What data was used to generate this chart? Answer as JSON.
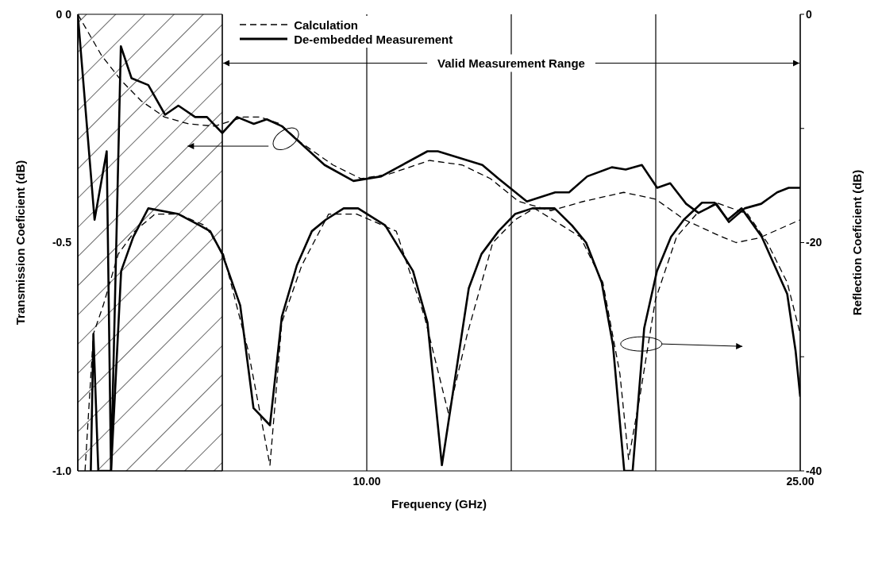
{
  "chart_data": {
    "type": "line",
    "xlabel": "Frequency (GHz)",
    "ylabel": "Transmission Coeficient (dB)",
    "y2label": "Reflection Coeficient (dB)",
    "xlim": [
      0,
      25
    ],
    "xticks": [
      {
        "value": 0,
        "label": null
      },
      {
        "value": 5,
        "label": null
      },
      {
        "value": 10,
        "label": "10.00"
      },
      {
        "value": 15,
        "label": null
      },
      {
        "value": 20,
        "label": null
      },
      {
        "value": 25,
        "label": "25.00"
      }
    ],
    "ylim": [
      -1,
      0
    ],
    "yticks": [
      {
        "value": 0,
        "label": "0 0"
      },
      {
        "value": -0.25,
        "label": null
      },
      {
        "value": -0.5,
        "label": "-0.5"
      },
      {
        "value": -0.75,
        "label": null
      },
      {
        "value": -1,
        "label": "-1.0"
      }
    ],
    "y2lim": [
      -40,
      0
    ],
    "y2ticks": [
      0,
      {
        "value": -10,
        "label": null
      },
      -20,
      {
        "value": -30,
        "label": null
      },
      -40
    ],
    "grid": true,
    "legend": "top left",
    "marker": "none",
    "bands": [
      {
        "axis": "x",
        "from": 0,
        "to": 5,
        "color": "#000000"
      }
    ],
    "annotations": [
      {
        "text": "Valid Measurement Range",
        "x": 5,
        "y": -0.1
      }
    ],
    "series": [
      {
        "name": "Calculation",
        "color": "#000000",
        "line_style": "dashed",
        "x": [
          0,
          0.82,
          1.5,
          2.2,
          3.0,
          3.83,
          4.74,
          5.74,
          6.3,
          7.0,
          7.7,
          8.83,
          9.8,
          10.77,
          12.17,
          13.3,
          14.28,
          15.26,
          16.37,
          17.49,
          18.89,
          20.0,
          21.0,
          22.2,
          22.78,
          23.57,
          25
        ],
        "values": [
          0,
          -0.09,
          -0.145,
          -0.19,
          -0.225,
          -0.24,
          -0.245,
          -0.225,
          -0.225,
          -0.24,
          -0.28,
          -0.33,
          -0.36,
          -0.35,
          -0.32,
          -0.33,
          -0.36,
          -0.41,
          -0.43,
          -0.41,
          -0.39,
          -0.405,
          -0.45,
          -0.485,
          -0.5,
          -0.49,
          -0.45
        ]
      },
      {
        "name": "De-embedded Measurement",
        "color": "#000000",
        "line_style": "solid",
        "x": [
          0,
          0.58,
          1.0,
          1.15,
          1.49,
          1.86,
          2.44,
          3.02,
          3.48,
          4.06,
          4.47,
          5.0,
          5.51,
          6.09,
          6.54,
          7.06,
          8.54,
          9.54,
          10.5,
          12.1,
          12.46,
          14.0,
          14.56,
          15.54,
          16.52,
          17.0,
          17.63,
          18.48,
          18.96,
          19.52,
          20.05,
          20.5,
          21.05,
          21.48,
          22.1,
          22.53,
          23.08,
          23.65,
          24.2,
          24.6,
          25
        ],
        "values": [
          0,
          -0.45,
          -0.3,
          -1.0,
          -0.07,
          -0.14,
          -0.155,
          -0.22,
          -0.2,
          -0.225,
          -0.225,
          -0.26,
          -0.225,
          -0.24,
          -0.23,
          -0.245,
          -0.33,
          -0.365,
          -0.355,
          -0.3,
          -0.3,
          -0.33,
          -0.36,
          -0.41,
          -0.39,
          -0.39,
          -0.355,
          -0.335,
          -0.34,
          -0.33,
          -0.38,
          -0.37,
          -0.415,
          -0.435,
          -0.415,
          -0.455,
          -0.425,
          -0.415,
          -0.39,
          -0.38,
          -0.38
        ]
      },
      {
        "color": "#000000",
        "line_style": "dashed",
        "axis": "y2",
        "x": [
          0.25,
          0.54,
          0.88,
          1.4,
          1.97,
          2.67,
          3.48,
          4.4,
          5.04,
          5.9,
          6.65,
          7.06,
          7.75,
          8.68,
          9.65,
          11.02,
          12.0,
          12.83,
          13.48,
          14.36,
          15.13,
          15.8,
          16.12,
          17.39,
          18.17,
          18.76,
          19.06,
          19.45,
          19.99,
          20.72,
          21.41,
          22.1,
          23.18,
          23.86,
          24.55,
          25
        ],
        "values": [
          -40,
          -28,
          -25.5,
          -21,
          -19,
          -17.5,
          -17.5,
          -18.5,
          -21,
          -29.5,
          -39.5,
          -27,
          -22,
          -17.5,
          -17.5,
          -19,
          -26.5,
          -35,
          -28,
          -20,
          -18,
          -17,
          -17.5,
          -19.5,
          -23.5,
          -31.5,
          -39,
          -33.5,
          -25,
          -19.5,
          -17.5,
          -16.5,
          -17.5,
          -20,
          -23.5,
          -28
        ]
      },
      {
        "color": "#000000",
        "line_style": "solid",
        "axis": "y2",
        "x": [
          0.45,
          0.54,
          0.71,
          1.15,
          1.5,
          1.92,
          2.44,
          3.48,
          4.22,
          4.58,
          5.0,
          5.62,
          6.08,
          6.65,
          7.06,
          7.58,
          8.1,
          8.58,
          9.2,
          9.7,
          10.64,
          11.6,
          12.1,
          12.6,
          13.53,
          13.97,
          14.56,
          15.13,
          15.73,
          16.5,
          17.1,
          17.59,
          18.13,
          18.52,
          18.91,
          19.2,
          19.6,
          20.04,
          20.53,
          20.97,
          21.6,
          22.04,
          22.49,
          22.97,
          23.67,
          24.55,
          24.84,
          25
        ],
        "values": [
          -40,
          -28,
          -40,
          -40,
          -22.5,
          -19.5,
          -17,
          -17.5,
          -18.5,
          -19,
          -21,
          -25.5,
          -34.5,
          -36,
          -26.5,
          -22,
          -19,
          -18,
          -17,
          -17,
          -18.5,
          -22.5,
          -27,
          -39.5,
          -24,
          -21,
          -19,
          -17.5,
          -17,
          -17,
          -18.5,
          -20,
          -23.5,
          -29,
          -40,
          -40,
          -27.5,
          -22.5,
          -19.5,
          -18,
          -16.5,
          -16.5,
          -18,
          -17,
          -19.5,
          -24.5,
          -29.5,
          -33.5
        ]
      }
    ]
  }
}
